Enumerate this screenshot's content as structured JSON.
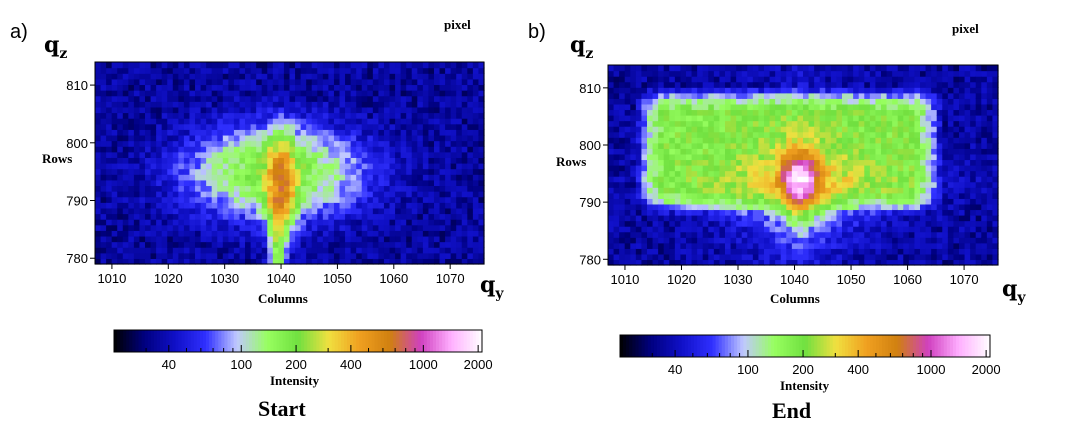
{
  "panels": [
    {
      "tag": "a)",
      "unit": "pixel",
      "qz": "q",
      "qz_sub": "z",
      "qy": "q",
      "qy_sub": "y",
      "ylabel": "Rows",
      "xlabel": "Columns",
      "colorbar_label": "Intensity",
      "caption": "Start"
    },
    {
      "tag": "b)",
      "unit": "pixel",
      "qz": "q",
      "qz_sub": "z",
      "qy": "q",
      "qy_sub": "y",
      "ylabel": "Rows",
      "xlabel": "Columns",
      "colorbar_label": "Intensity",
      "caption": "End"
    }
  ],
  "chart_data": [
    {
      "type": "heatmap",
      "title": "Start",
      "xlabel": "Columns",
      "ylabel": "Rows",
      "x_ticks": [
        1010,
        1020,
        1030,
        1040,
        1050,
        1060,
        1070
      ],
      "y_ticks": [
        780,
        790,
        800,
        810
      ],
      "xlim": [
        1007,
        1076
      ],
      "ylim": [
        779,
        814
      ],
      "colorbar": {
        "label": "Intensity",
        "scale": "log",
        "range": [
          20,
          2100
        ],
        "ticks": [
          40,
          100,
          200,
          400,
          1000,
          2000
        ],
        "colors": [
          "#000000",
          "#000080",
          "#1010c8",
          "#3030ff",
          "#c0c8ff",
          "#98ff60",
          "#70e040",
          "#f0e040",
          "#f0a020",
          "#d08010",
          "#d040c0",
          "#ffb0ff",
          "#ffffff"
        ]
      },
      "features": [
        {
          "kind": "core",
          "x": 1040,
          "y": 793,
          "peak_intensity": 500,
          "sigma_x": 1.6,
          "sigma_y": 4.5
        },
        {
          "kind": "halo",
          "x": 1039,
          "y": 795,
          "peak_intensity": 160,
          "sigma_x": 9,
          "sigma_y": 4.5
        },
        {
          "kind": "vertical_streak",
          "x": 1039.5,
          "y_from": 779,
          "y_to": 790,
          "intensity": 150
        },
        {
          "kind": "background",
          "intensity": 35
        }
      ]
    },
    {
      "type": "heatmap",
      "title": "End",
      "xlabel": "Columns",
      "ylabel": "Rows",
      "x_ticks": [
        1010,
        1020,
        1030,
        1040,
        1050,
        1060,
        1070
      ],
      "y_ticks": [
        780,
        790,
        800,
        810
      ],
      "xlim": [
        1007,
        1076
      ],
      "ylim": [
        779,
        814
      ],
      "colorbar": {
        "label": "Intensity",
        "scale": "log",
        "range": [
          20,
          2100
        ],
        "ticks": [
          40,
          100,
          200,
          400,
          1000,
          2000
        ],
        "colors": [
          "#000000",
          "#000080",
          "#1010c8",
          "#3030ff",
          "#c0c8ff",
          "#98ff60",
          "#70e040",
          "#f0e040",
          "#f0a020",
          "#d08010",
          "#d040c0",
          "#ffb0ff",
          "#ffffff"
        ]
      },
      "features": [
        {
          "kind": "core",
          "x": 1041,
          "y": 794,
          "peak_intensity": 1300,
          "sigma_x": 1.8,
          "sigma_y": 2.6
        },
        {
          "kind": "diamond",
          "x": 1041,
          "y": 794,
          "peak_intensity": 450,
          "sigma_x": 7,
          "sigma_y": 5
        },
        {
          "kind": "plateau",
          "x_from": 1012,
          "x_to": 1066,
          "y_from": 788,
          "y_to": 810,
          "intensity": 150
        },
        {
          "kind": "background",
          "intensity": 35
        }
      ]
    }
  ]
}
